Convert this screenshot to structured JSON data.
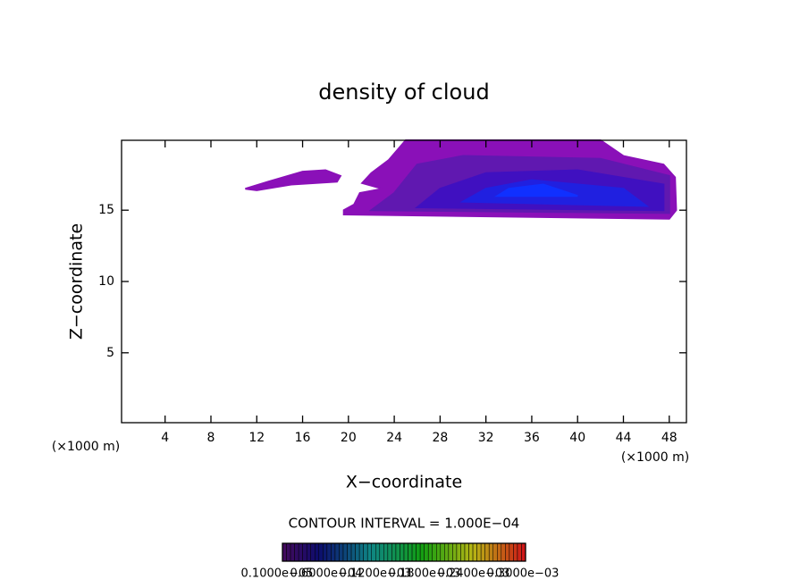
{
  "chart_data": {
    "type": "contour",
    "title": "density of cloud",
    "xlabel": "X−coordinate",
    "ylabel": "Z−coordinate",
    "x_unit": "(×1000 m)",
    "y_unit": "(×1000 m)",
    "xlim": [
      0.2,
      49.5
    ],
    "ylim": [
      0.1,
      19.9
    ],
    "xticks": [
      4,
      8,
      12,
      16,
      20,
      24,
      28,
      32,
      36,
      40,
      44,
      48
    ],
    "yticks": [
      5,
      10,
      15
    ],
    "annotation": "CONTOUR INTERVAL = 1.000E−04",
    "contours": [
      {
        "level": 1e-05,
        "color": "#8a10b8",
        "x": [
          11,
          13,
          16,
          18,
          19.3,
          19,
          15,
          12
        ],
        "z": [
          16.5,
          17,
          17.7,
          17.8,
          17.4,
          17.0,
          16.8,
          16.4
        ]
      },
      {
        "level": 1e-05,
        "color": "#8a10b8",
        "x": [
          19.6,
          48,
          48.6,
          48.5,
          47.5,
          44,
          42,
          25,
          23.5,
          22,
          21.2,
          23,
          21,
          20.5,
          19.6
        ],
        "z": [
          14.7,
          14.4,
          15,
          17.3,
          18.2,
          18.8,
          19.9,
          19.9,
          18.5,
          17.6,
          16.9,
          16.5,
          16.2,
          15.4,
          15.0
        ]
      },
      {
        "level": 0.0001,
        "color": "#6018b0",
        "x": [
          22,
          48,
          48,
          42,
          30,
          26,
          24
        ],
        "z": [
          15,
          14.8,
          17.4,
          18.6,
          18.8,
          18.2,
          16.2
        ]
      },
      {
        "level": 0.0002,
        "color": "#4010c0",
        "x": [
          26,
          47.5,
          47.5,
          40,
          32,
          28
        ],
        "z": [
          15.2,
          15,
          16.8,
          17.8,
          17.6,
          16.5
        ]
      },
      {
        "level": 0.0003,
        "color": "#2020e0",
        "x": [
          30,
          46,
          44,
          36,
          32
        ],
        "z": [
          15.6,
          15.3,
          16.5,
          17.1,
          16.5
        ]
      },
      {
        "level": 0.0004,
        "color": "#1030ff",
        "x": [
          33,
          40,
          37,
          34
        ],
        "z": [
          16,
          16,
          16.8,
          16.5
        ]
      }
    ],
    "colorbar_labels": [
      "0.1000e−05",
      "0.6000e−04",
      "0.1200e−03",
      "0.1800e−03",
      "0.2400e−03",
      "0.3000e−03"
    ]
  }
}
